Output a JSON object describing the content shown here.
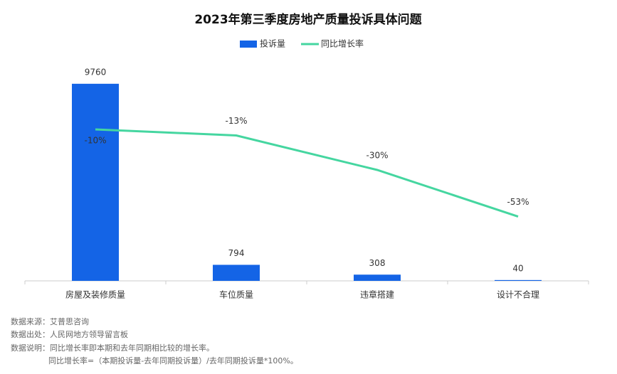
{
  "chart_data": {
    "type": "bar",
    "title": "2023年第三季度房地产质量投诉具体问题",
    "categories": [
      "房屋及装修质量",
      "车位质量",
      "违章搭建",
      "设计不合理"
    ],
    "series": [
      {
        "name": "投诉量",
        "type": "bar",
        "color": "#1464e6",
        "values": [
          9760,
          794,
          308,
          40
        ]
      },
      {
        "name": "同比增长率",
        "type": "line",
        "axis": "y2",
        "color": "#45d6a0",
        "values": [
          -10,
          -13,
          -30,
          -53
        ],
        "value_labels": [
          "-10%",
          "-13%",
          "-30%",
          "-53%"
        ]
      }
    ],
    "ylim": [
      0,
      10000
    ],
    "y2lim": [
      -60,
      0
    ],
    "grid": false,
    "legend": "top"
  },
  "notes": [
    "数据来源：艾普思咨询",
    "数据出处：人民网地方领导留言板",
    "数据说明：同比增长率即本期和去年同期相比较的增长率。",
    "同比增长率=（本期投诉量-去年同期投诉量）/去年同期投诉量*100%。"
  ]
}
